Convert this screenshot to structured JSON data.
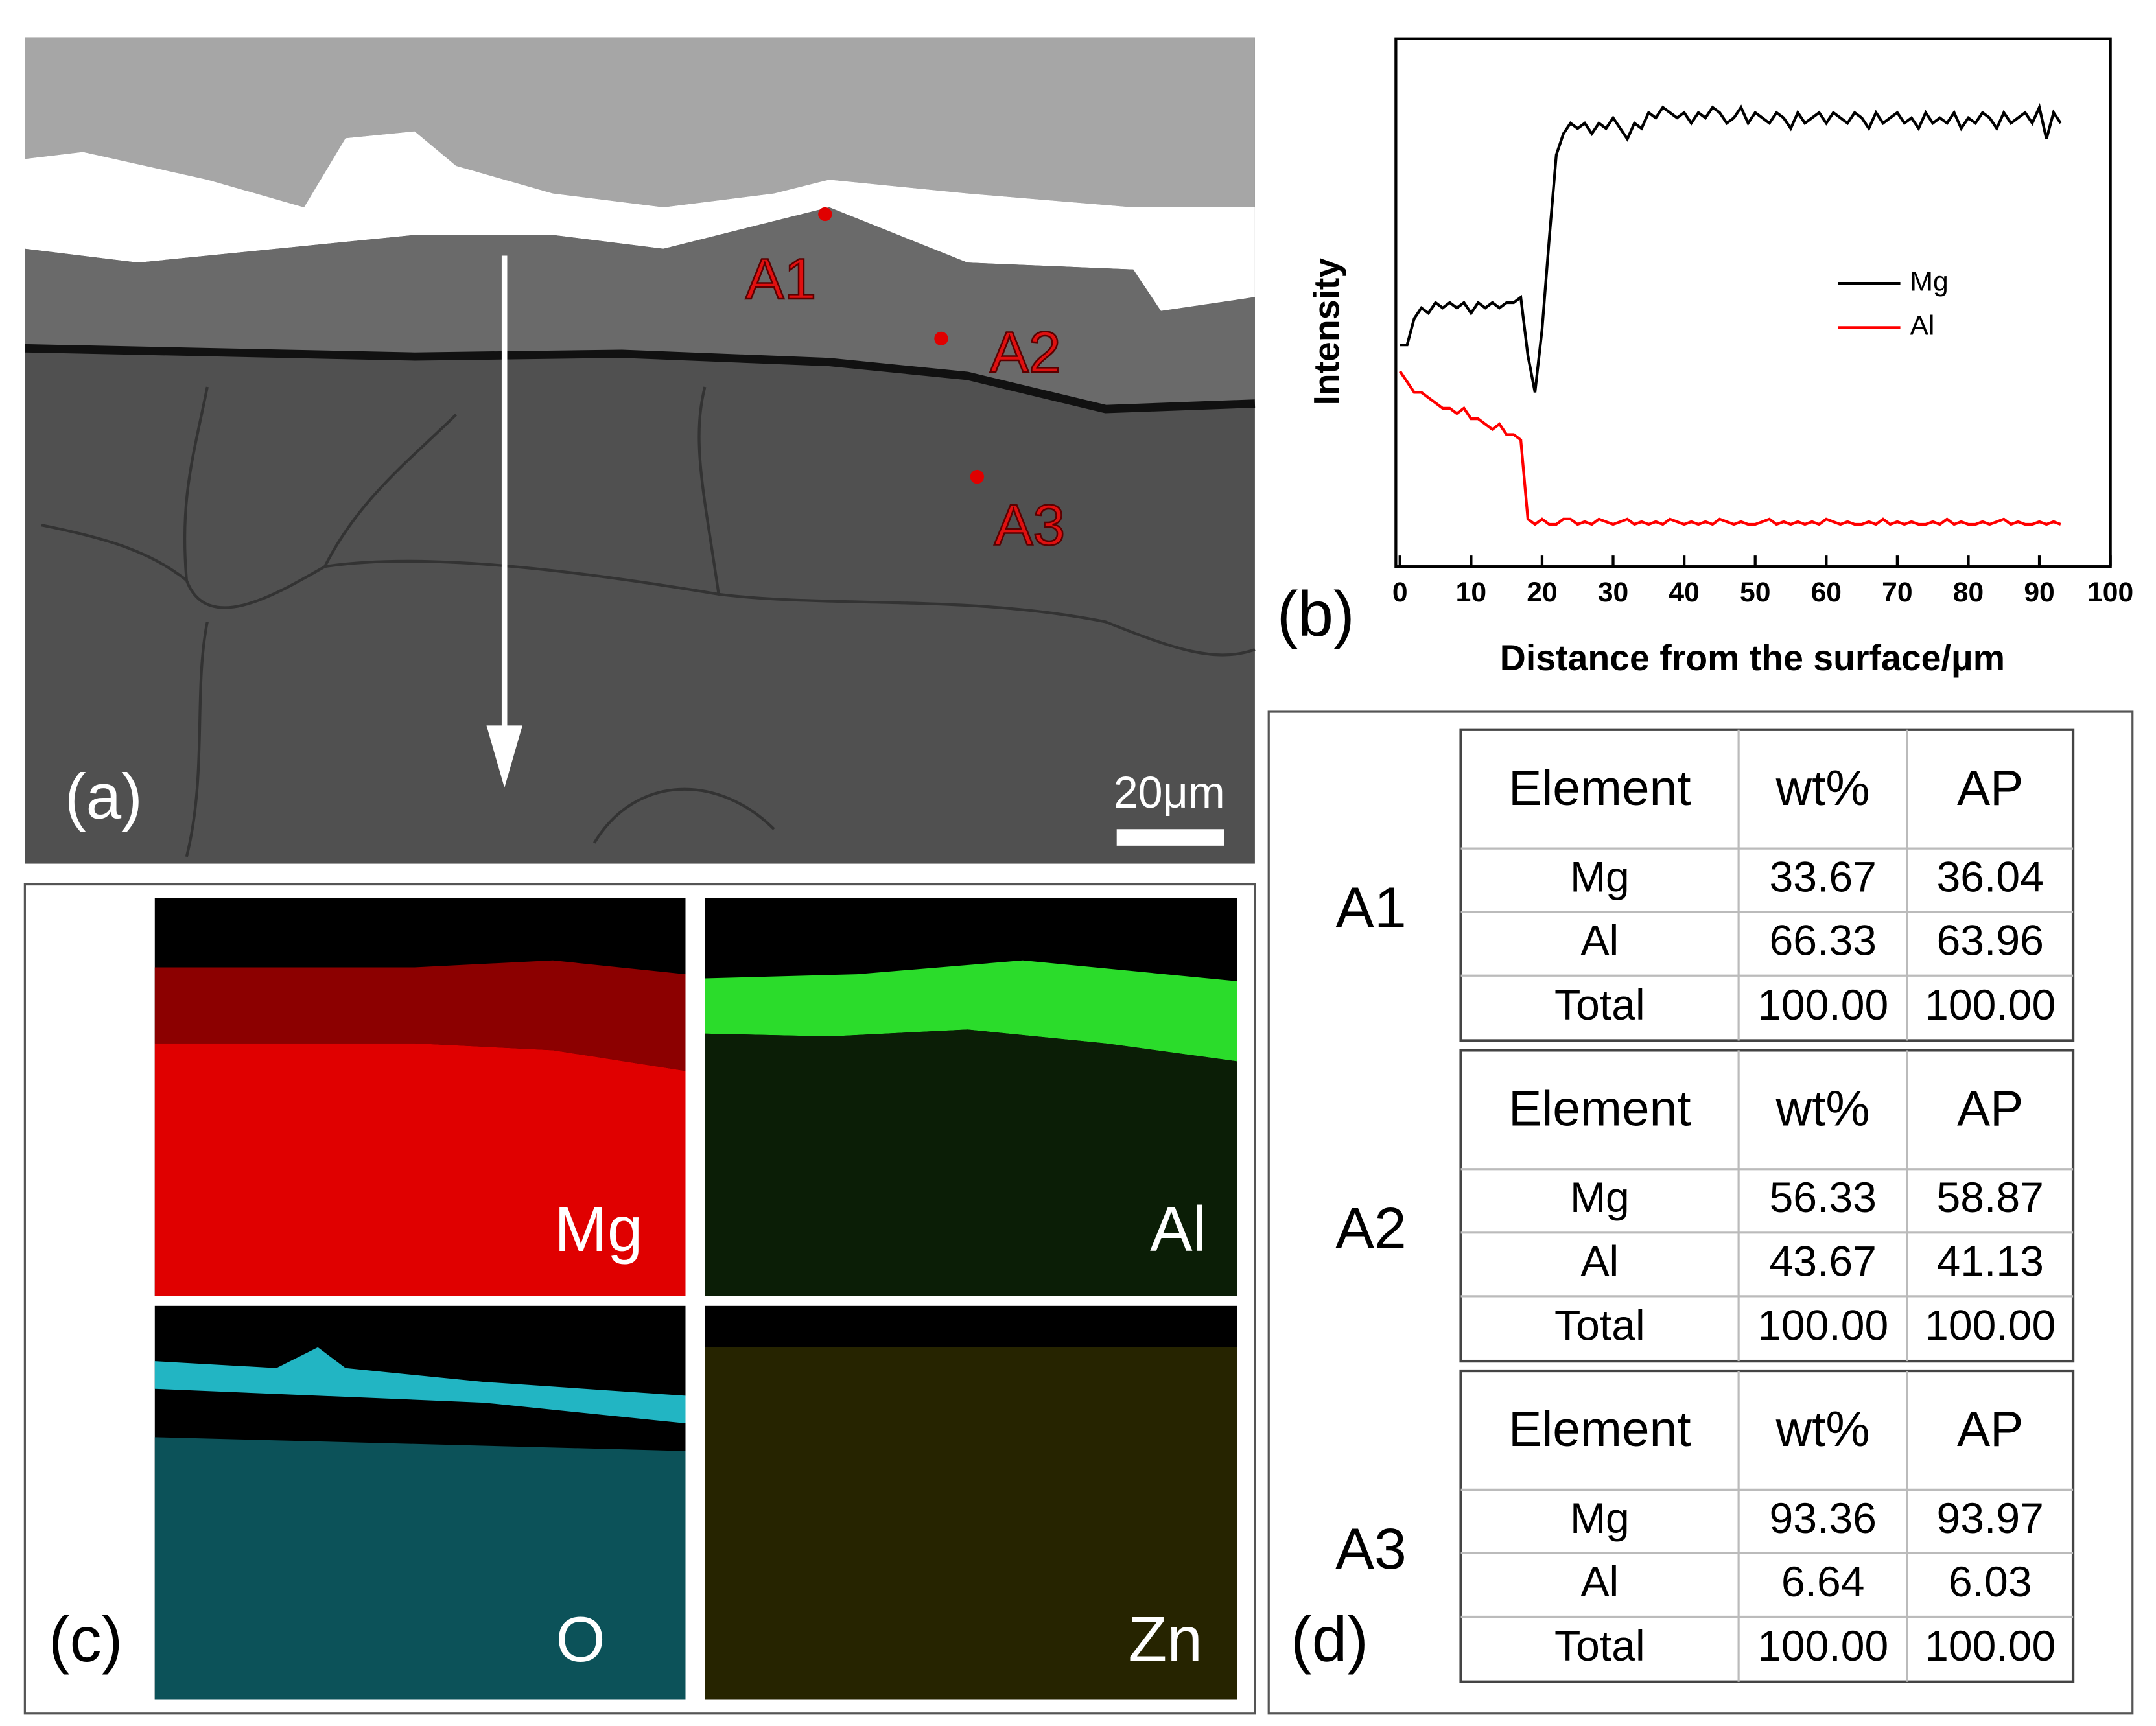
{
  "panel_a": {
    "label": "(a)",
    "points": [
      "A1",
      "A2",
      "A3"
    ],
    "scale_bar": "20μm"
  },
  "chart_data": {
    "type": "line",
    "panel_label": "(b)",
    "xlabel": "Distance from the surface/μm",
    "ylabel": "Intensity",
    "x": [
      0,
      1,
      2,
      3,
      4,
      5,
      6,
      7,
      8,
      9,
      10,
      11,
      12,
      13,
      14,
      15,
      16,
      17,
      18,
      19,
      20,
      21,
      22,
      23,
      24,
      25,
      26,
      27,
      28,
      29,
      30,
      31,
      32,
      33,
      34,
      35,
      36,
      37,
      38,
      39,
      40,
      41,
      42,
      43,
      44,
      45,
      46,
      47,
      48,
      49,
      50,
      51,
      52,
      53,
      54,
      55,
      56,
      57,
      58,
      59,
      60,
      61,
      62,
      63,
      64,
      65,
      66,
      67,
      68,
      69,
      70,
      71,
      72,
      73,
      74,
      75,
      76,
      77,
      78,
      79,
      80,
      81,
      82,
      83,
      84,
      85,
      86,
      87,
      88,
      89,
      90,
      91,
      92,
      93
    ],
    "series": [
      {
        "name": "Mg",
        "color": "#000000",
        "values": [
          42,
          42,
          47,
          49,
          48,
          50,
          49,
          50,
          49,
          50,
          48,
          50,
          49,
          50,
          49,
          50,
          50,
          51,
          40,
          33,
          45,
          62,
          78,
          82,
          84,
          83,
          84,
          82,
          84,
          83,
          85,
          83,
          81,
          84,
          83,
          86,
          85,
          87,
          86,
          85,
          86,
          84,
          86,
          85,
          87,
          86,
          84,
          85,
          87,
          84,
          86,
          85,
          84,
          86,
          85,
          83,
          86,
          84,
          85,
          86,
          84,
          86,
          85,
          84,
          86,
          85,
          83,
          86,
          84,
          85,
          86,
          84,
          85,
          83,
          86,
          84,
          85,
          84,
          86,
          83,
          85,
          84,
          86,
          85,
          83,
          86,
          84,
          85,
          86,
          84,
          87,
          81,
          86,
          84
        ]
      },
      {
        "name": "Al",
        "color": "#ff0000",
        "values": [
          37,
          35,
          33,
          33,
          32,
          31,
          30,
          30,
          29,
          30,
          28,
          28,
          27,
          26,
          27,
          25,
          25,
          24,
          9,
          8,
          9,
          8,
          8,
          9,
          9,
          8,
          8.5,
          8,
          9,
          8.5,
          8,
          8.5,
          9,
          8,
          8.5,
          8,
          8.5,
          8,
          9,
          8.5,
          8,
          8.5,
          8,
          8.5,
          8,
          9,
          8.5,
          8,
          8.5,
          8,
          8,
          8.5,
          9,
          8,
          8.5,
          8,
          8.5,
          8,
          8.5,
          8,
          9,
          8.5,
          8,
          8.5,
          8,
          8,
          8.5,
          8,
          9,
          8,
          8.5,
          8,
          8.5,
          8,
          8,
          8.5,
          8,
          9,
          8,
          8.5,
          8,
          8,
          8.5,
          8,
          8.5,
          9,
          8,
          8.5,
          8,
          8,
          8.5,
          8,
          8.5,
          8
        ]
      }
    ],
    "xlim": [
      0,
      100
    ],
    "xticks": [
      0,
      10,
      20,
      30,
      40,
      50,
      60,
      70,
      80,
      90,
      100
    ],
    "ylim": [
      0,
      100
    ],
    "legend": "center-right"
  },
  "panel_c": {
    "label": "(c)",
    "maps": [
      "Mg",
      "Al",
      "O",
      "Zn"
    ]
  },
  "panel_d": {
    "label": "(d)",
    "tables": [
      {
        "point": "A1",
        "header": [
          "Element",
          "wt%",
          "AP"
        ],
        "rows": [
          [
            "Mg",
            "33.67",
            "36.04"
          ],
          [
            "Al",
            "66.33",
            "63.96"
          ],
          [
            "Total",
            "100.00",
            "100.00"
          ]
        ]
      },
      {
        "point": "A2",
        "header": [
          "Element",
          "wt%",
          "AP"
        ],
        "rows": [
          [
            "Mg",
            "56.33",
            "58.87"
          ],
          [
            "Al",
            "43.67",
            "41.13"
          ],
          [
            "Total",
            "100.00",
            "100.00"
          ]
        ]
      },
      {
        "point": "A3",
        "header": [
          "Element",
          "wt%",
          "AP"
        ],
        "rows": [
          [
            "Mg",
            "93.36",
            "93.97"
          ],
          [
            "Al",
            "6.64",
            "6.03"
          ],
          [
            "Total",
            "100.00",
            "100.00"
          ]
        ]
      }
    ]
  }
}
